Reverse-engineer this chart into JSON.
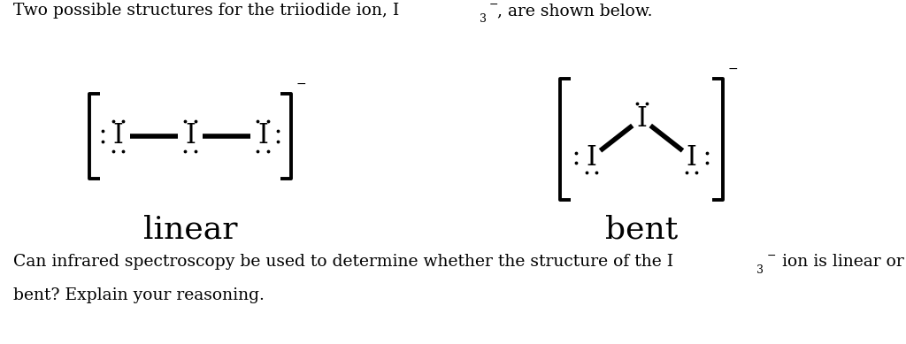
{
  "bg_color": "#ffffff",
  "text_color": "#000000",
  "label_linear": "linear",
  "label_bent": "bent",
  "figsize": [
    10.24,
    3.89
  ],
  "dpi": 100,
  "top_text": "Two possible structures for the triiodide ion, I",
  "top_sub": "3",
  "top_sup": "−",
  "top_end": ", are shown below.",
  "bot_text1": "Can infrared spectroscopy be used to determine whether the structure of the I",
  "bot_sub": "3",
  "bot_sup": "−",
  "bot_end": " ion is linear or",
  "bot_text2": "bent? Explain your reasoning."
}
